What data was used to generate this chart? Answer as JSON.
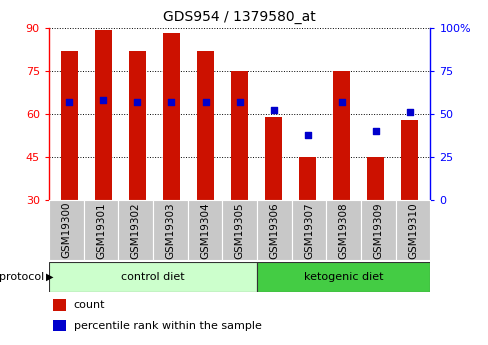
{
  "title": "GDS954 / 1379580_at",
  "samples": [
    "GSM19300",
    "GSM19301",
    "GSM19302",
    "GSM19303",
    "GSM19304",
    "GSM19305",
    "GSM19306",
    "GSM19307",
    "GSM19308",
    "GSM19309",
    "GSM19310"
  ],
  "counts": [
    82,
    89,
    82,
    88,
    82,
    75,
    59,
    45,
    75,
    45,
    58
  ],
  "percentile_ranks": [
    57,
    58,
    57,
    57,
    57,
    57,
    52,
    38,
    57,
    40,
    51
  ],
  "ylim_left": [
    30,
    90
  ],
  "ylim_right": [
    0,
    100
  ],
  "yticks_left": [
    30,
    45,
    60,
    75,
    90
  ],
  "yticks_right": [
    0,
    25,
    50,
    75,
    100
  ],
  "bar_color": "#CC1100",
  "dot_color": "#0000CC",
  "bar_bottom": 30,
  "n_control": 6,
  "n_keto": 5,
  "control_diet_label": "control diet",
  "ketogenic_diet_label": "ketogenic diet",
  "protocol_label": "protocol",
  "legend_count": "count",
  "legend_percentile": "percentile rank within the sample",
  "control_bg": "#CCFFCC",
  "ketogenic_bg": "#44CC44",
  "sample_bg": "#C8C8C8",
  "bar_width": 0.5,
  "title_fontsize": 10,
  "tick_fontsize": 8,
  "label_fontsize": 7.5,
  "dot_size": 25
}
